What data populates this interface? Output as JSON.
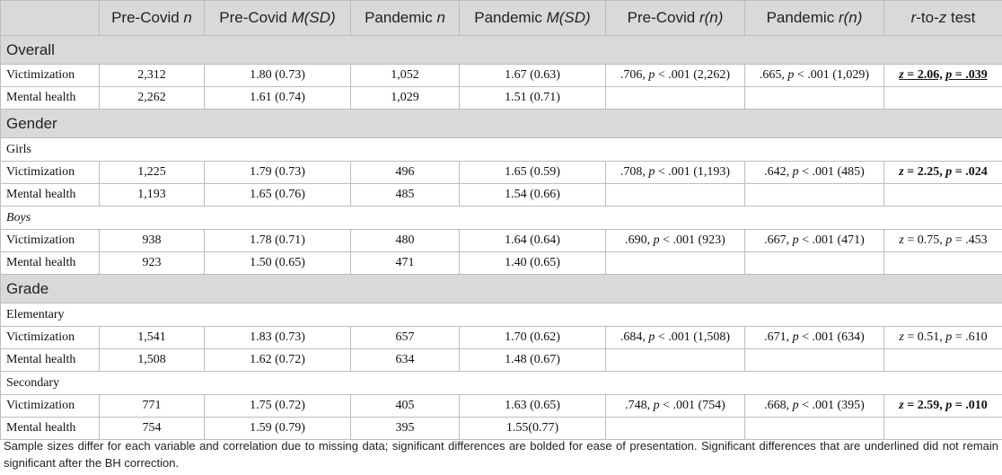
{
  "columns": {
    "blank": "",
    "pre_n": "Pre-Covid",
    "pre_m": "Pre-Covid",
    "pan_n": "Pandemic",
    "pan_m": "Pandemic",
    "pre_r": "Pre-Covid",
    "pan_r": "Pandemic",
    "test": "-to-",
    "test_tail": "test",
    "n_sym": "n",
    "msd_sym": "M(SD)",
    "r_sym": "r(n)",
    "r_letter": "r",
    "z_letter": "z"
  },
  "sections": [
    {
      "label": "Overall"
    },
    {
      "label": "Gender",
      "groups": [
        "Girls",
        "Boys"
      ]
    },
    {
      "label": "Grade",
      "groups": [
        "Elementary",
        "Secondary"
      ]
    }
  ],
  "rows": [
    {
      "label": "Victimization",
      "pre_n": "2,312",
      "pre_m": "1.80 (0.73)",
      "pan_n": "1,052",
      "pan_m": "1.67 (0.63)",
      "pre_r_val": ".706,",
      "pre_r_tail": "< .001 (2,262)",
      "pan_r_val": ".665,",
      "pan_r_tail": "< .001 (1,029)",
      "z_eq": "= 2.06,",
      "p_eq": "= .039"
    },
    {
      "label": "Mental health",
      "pre_n": "2,262",
      "pre_m": "1.61 (0.74)",
      "pan_n": "1,029",
      "pan_m": "1.51 (0.71)"
    },
    {
      "label": "Victimization",
      "pre_n": "1,225",
      "pre_m": "1.79 (0.73)",
      "pan_n": "496",
      "pan_m": "1.65 (0.59)",
      "pre_r_val": ".708,",
      "pre_r_tail": "< .001 (1,193)",
      "pan_r_val": ".642,",
      "pan_r_tail": "< .001 (485)",
      "z_eq": "= 2.25,",
      "p_eq": "= .024"
    },
    {
      "label": "Mental health",
      "pre_n": "1,193",
      "pre_m": "1.65 (0.76)",
      "pan_n": "485",
      "pan_m": "1.54 (0.66)"
    },
    {
      "label": "Victimization",
      "pre_n": "938",
      "pre_m": "1.78 (0.71)",
      "pan_n": "480",
      "pan_m": "1.64 (0.64)",
      "pre_r_val": ".690,",
      "pre_r_tail": "< .001 (923)",
      "pan_r_val": ".667,",
      "pan_r_tail": "< .001 (471)",
      "z_eq": "= 0.75,",
      "p_eq": "= .453"
    },
    {
      "label": "Mental health",
      "pre_n": "923",
      "pre_m": "1.50 (0.65)",
      "pan_n": "471",
      "pan_m": "1.40 (0.65)"
    },
    {
      "label": "Victimization",
      "pre_n": "1,541",
      "pre_m": "1.83 (0.73)",
      "pan_n": "657",
      "pan_m": "1.70 (0.62)",
      "pre_r_val": ".684,",
      "pre_r_tail": "< .001 (1,508)",
      "pan_r_val": ".671,",
      "pan_r_tail": "< .001 (634)",
      "z_eq": "= 0.51,",
      "p_eq": "= .610"
    },
    {
      "label": "Mental health",
      "pre_n": "1,508",
      "pre_m": "1.62 (0.72)",
      "pan_n": "634",
      "pan_m": "1.48 (0.67)"
    },
    {
      "label": "Victimization",
      "pre_n": "771",
      "pre_m": "1.75 (0.72)",
      "pan_n": "405",
      "pan_m": "1.63 (0.65)",
      "pre_r_val": ".748,",
      "pre_r_tail": "< .001 (754)",
      "pan_r_val": ".668,",
      "pan_r_tail": "< .001 (395)",
      "z_eq": "= 2.59,",
      "p_eq": "= .010"
    },
    {
      "label": "Mental health",
      "pre_n": "754",
      "pre_m": "1.59 (0.79)",
      "pan_n": "395",
      "pan_m": "1.55(0.77)"
    }
  ],
  "symbols": {
    "p": "p",
    "z": "z"
  },
  "note": "Sample sizes differ for each variable and correlation due to missing data; significant differences are bolded for ease of presentation. Significant differences that are underlined did not remain significant after the BH correction."
}
